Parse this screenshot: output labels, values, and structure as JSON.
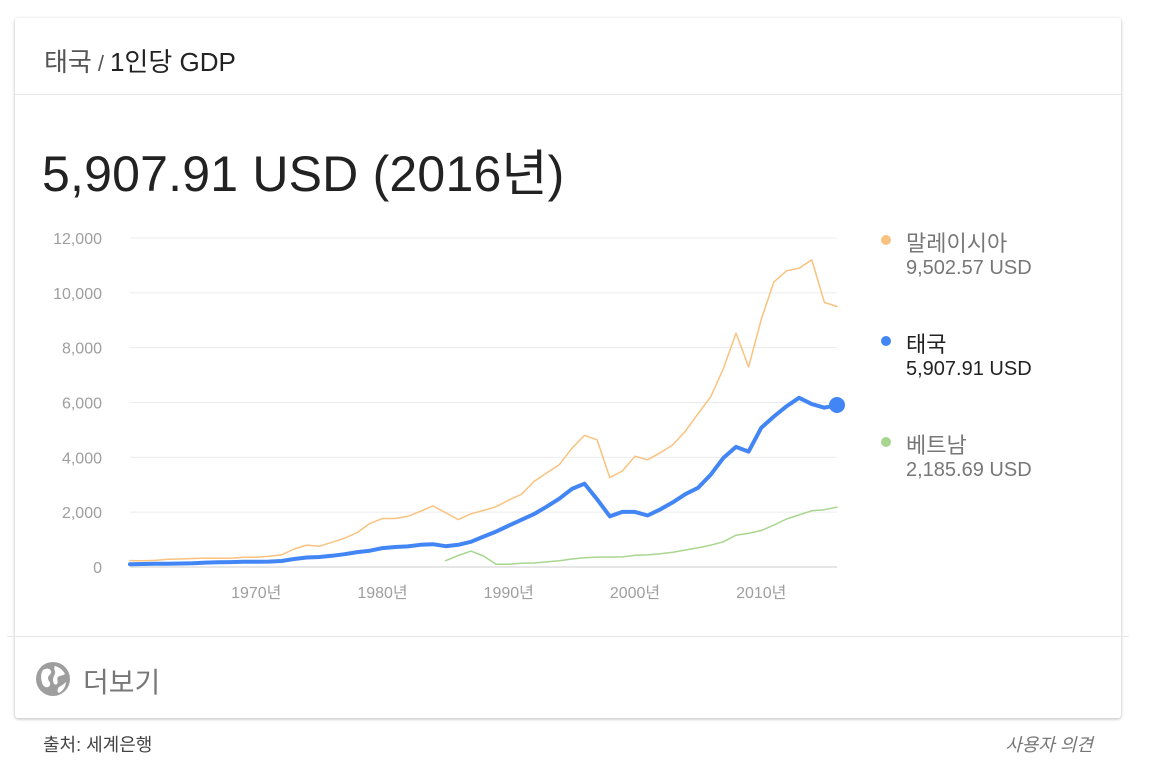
{
  "header": {
    "country": "태국",
    "separator": "/",
    "metric": "1인당 GDP"
  },
  "headline_value": "5,907.91 USD (2016년)",
  "legend": [
    {
      "name": "말레이시아",
      "value": "9,502.57 USD",
      "color": "#f9c27f",
      "text_color": "#777777"
    },
    {
      "name": "태국",
      "value": "5,907.91 USD",
      "color": "#4285f4",
      "text_color": "#222222"
    },
    {
      "name": "베트남",
      "value": "2,185.69 USD",
      "color": "#a8d68f",
      "text_color": "#777777"
    }
  ],
  "footer": {
    "more_label": "더보기",
    "more_icon": "globe-icon",
    "source": "출처: 세계은행",
    "feedback": "사용자 의견"
  },
  "chart_data": {
    "type": "line",
    "title": "",
    "xlabel": "",
    "ylabel": "",
    "ylim": [
      0,
      12000
    ],
    "xlim": [
      1960,
      2016
    ],
    "yticks": [
      0,
      2000,
      4000,
      6000,
      8000,
      10000,
      12000
    ],
    "ytick_labels": [
      "0",
      "2,000",
      "4,000",
      "6,000",
      "8,000",
      "10,000",
      "12,000"
    ],
    "xticks": [
      1970,
      1980,
      1990,
      2000,
      2010
    ],
    "xtick_labels": [
      "1970년",
      "1980년",
      "1990년",
      "2000년",
      "2010년"
    ],
    "grid": true,
    "legend_position": "right",
    "highlight": {
      "series": "태국",
      "x": 2016,
      "y": 5907.91
    },
    "series": [
      {
        "name": "말레이시아",
        "color": "#f9c27f",
        "x": [
          1960,
          1961,
          1962,
          1963,
          1964,
          1965,
          1966,
          1967,
          1968,
          1969,
          1970,
          1971,
          1972,
          1973,
          1974,
          1975,
          1976,
          1977,
          1978,
          1979,
          1980,
          1981,
          1982,
          1983,
          1984,
          1985,
          1986,
          1987,
          1988,
          1989,
          1990,
          1991,
          1992,
          1993,
          1994,
          1995,
          1996,
          1997,
          1998,
          1999,
          2000,
          2001,
          2002,
          2003,
          2004,
          2005,
          2006,
          2007,
          2008,
          2009,
          2010,
          2011,
          2012,
          2013,
          2014,
          2015,
          2016
        ],
        "y": [
          235,
          230,
          241,
          283,
          291,
          311,
          326,
          317,
          321,
          353,
          358,
          393,
          440,
          655,
          800,
          760,
          900,
          1050,
          1260,
          1590,
          1770,
          1770,
          1850,
          2030,
          2230,
          1980,
          1730,
          1940,
          2060,
          2200,
          2440,
          2650,
          3120,
          3430,
          3730,
          4330,
          4800,
          4640,
          3260,
          3500,
          4040,
          3910,
          4170,
          4460,
          4960,
          5590,
          6210,
          7240,
          8530,
          7300,
          9040,
          10400,
          10800,
          10900,
          11200,
          9650,
          9502.57
        ]
      },
      {
        "name": "태국",
        "color": "#4285f4",
        "x": [
          1960,
          1961,
          1962,
          1963,
          1964,
          1965,
          1966,
          1967,
          1968,
          1969,
          1970,
          1971,
          1972,
          1973,
          1974,
          1975,
          1976,
          1977,
          1978,
          1979,
          1980,
          1981,
          1982,
          1983,
          1984,
          1985,
          1986,
          1987,
          1988,
          1989,
          1990,
          1991,
          1992,
          1993,
          1994,
          1995,
          1996,
          1997,
          1998,
          1999,
          2000,
          2001,
          2002,
          2003,
          2004,
          2005,
          2006,
          2007,
          2008,
          2009,
          2010,
          2011,
          2012,
          2013,
          2014,
          2015,
          2016
        ],
        "y": [
          101,
          109,
          115,
          118,
          126,
          138,
          161,
          170,
          180,
          192,
          192,
          196,
          219,
          291,
          348,
          365,
          409,
          466,
          544,
          595,
          690,
          730,
          750,
          810,
          830,
          760,
          810,
          920,
          1110,
          1290,
          1510,
          1720,
          1930,
          2200,
          2490,
          2850,
          3040,
          2470,
          1850,
          2010,
          2010,
          1880,
          2100,
          2360,
          2660,
          2890,
          3370,
          3980,
          4380,
          4210,
          5080,
          5490,
          5860,
          6170,
          5940,
          5810,
          5907.91
        ]
      },
      {
        "name": "베트남",
        "color": "#a8d68f",
        "x": [
          1985,
          1986,
          1987,
          1988,
          1989,
          1990,
          1991,
          1992,
          1993,
          1994,
          1995,
          1996,
          1997,
          1998,
          1999,
          2000,
          2001,
          2002,
          2003,
          2004,
          2005,
          2006,
          2007,
          2008,
          2009,
          2010,
          2011,
          2012,
          2013,
          2014,
          2015,
          2016
        ],
        "y": [
          230,
          420,
          580,
          400,
          100,
          100,
          140,
          145,
          185,
          225,
          290,
          340,
          360,
          360,
          370,
          430,
          440,
          480,
          540,
          620,
          700,
          800,
          920,
          1160,
          1230,
          1330,
          1530,
          1750,
          1900,
          2050,
          2090,
          2185.69
        ]
      }
    ]
  }
}
